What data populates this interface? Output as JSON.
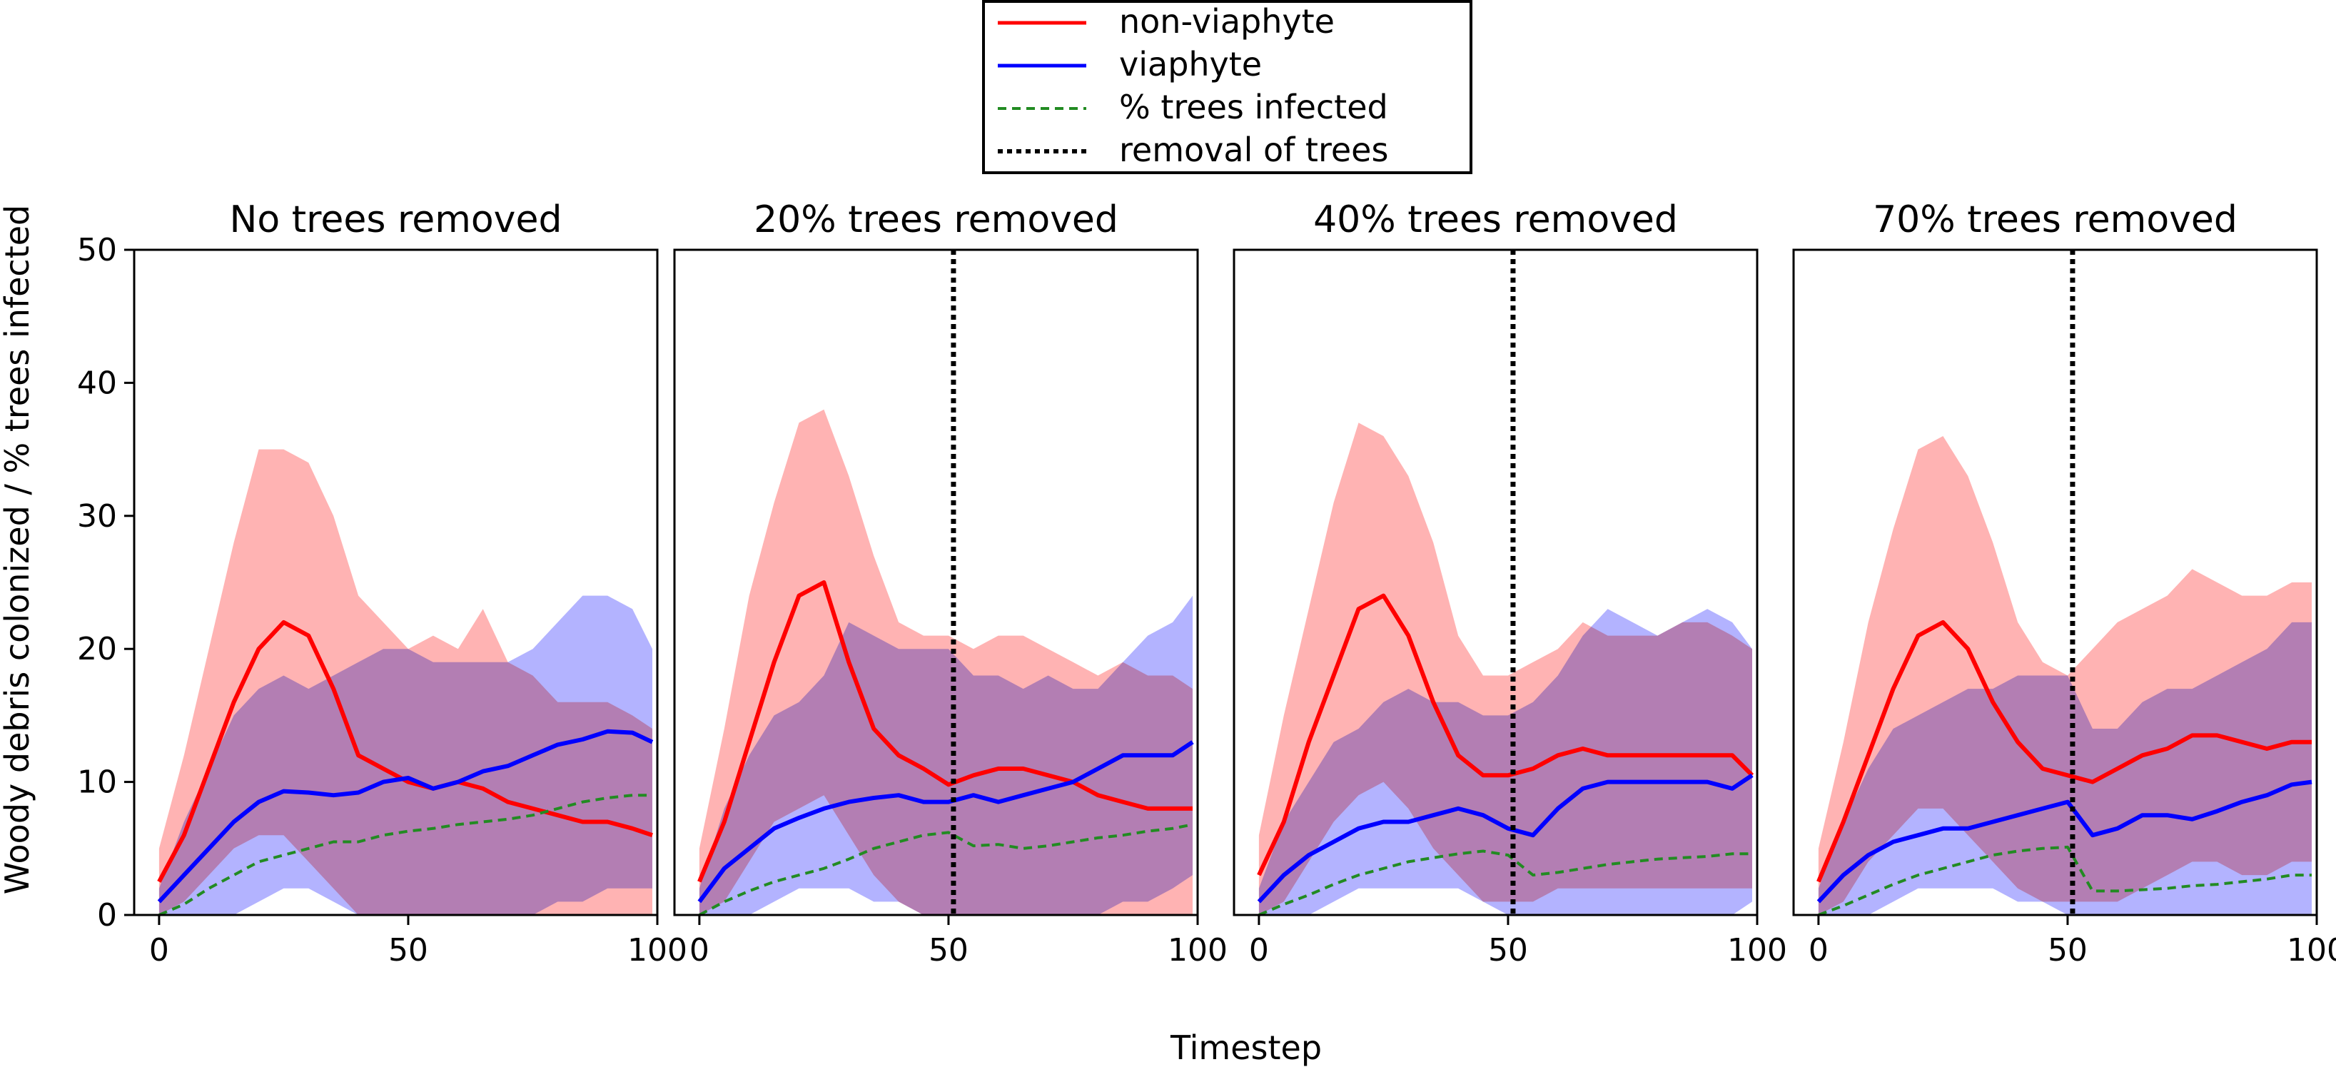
{
  "chart_data": {
    "type": "line",
    "ylabel": "Woody debris colonized / % trees infected",
    "xlabel": "Timestep",
    "ylim": [
      0,
      50
    ],
    "xlim": [
      -5,
      100
    ],
    "yticks": [
      0,
      10,
      20,
      30,
      40,
      50
    ],
    "xticks": [
      0,
      50,
      100
    ],
    "grid": false,
    "legend": {
      "placement": "top-center",
      "entries": [
        {
          "label": "non-viaphyte",
          "color": "#ff0000",
          "style": "solid"
        },
        {
          "label": "viaphyte",
          "color": "#0000ff",
          "style": "solid"
        },
        {
          "label": "% trees infected",
          "color": "#228b22",
          "style": "dashed"
        },
        {
          "label": "removal of trees",
          "color": "#000000",
          "style": "dotted"
        }
      ]
    },
    "colors": {
      "non_viaphyte": "#ff0000",
      "viaphyte": "#0000ff",
      "infected": "#228b22",
      "band_red": "#ff9999",
      "band_blue": "#9999ff"
    },
    "x": [
      0,
      5,
      10,
      15,
      20,
      25,
      30,
      35,
      40,
      45,
      50,
      55,
      60,
      65,
      70,
      75,
      80,
      85,
      90,
      95,
      99
    ],
    "panels": [
      {
        "title": "No trees removed",
        "removal_x": null,
        "series": [
          {
            "name": "non-viaphyte",
            "values": [
              2.5,
              6,
              11,
              16,
              20,
              22,
              21,
              17,
              12,
              11,
              10,
              9.5,
              10,
              9.5,
              8.5,
              8,
              7.5,
              7,
              7,
              6.5,
              6
            ],
            "lower": [
              0,
              1,
              3,
              5,
              6,
              6,
              4,
              2,
              0,
              0,
              0,
              0,
              0,
              0,
              0,
              0,
              0,
              0,
              0,
              0,
              0
            ],
            "upper": [
              5,
              12,
              20,
              28,
              35,
              35,
              34,
              30,
              24,
              22,
              20,
              21,
              20,
              23,
              19,
              18,
              16,
              16,
              16,
              15,
              14
            ]
          },
          {
            "name": "viaphyte",
            "values": [
              1,
              3,
              5,
              7,
              8.5,
              9.3,
              9.2,
              9,
              9.2,
              10,
              10.3,
              9.5,
              10,
              10.8,
              11.2,
              12,
              12.8,
              13.2,
              13.8,
              13.7,
              13
            ],
            "lower": [
              0,
              0,
              0,
              0,
              1,
              2,
              2,
              1,
              0,
              0,
              0,
              0,
              0,
              0,
              0,
              0,
              1,
              1,
              2,
              2,
              2
            ],
            "upper": [
              2,
              7,
              11,
              15,
              17,
              18,
              17,
              18,
              19,
              20,
              20,
              19,
              19,
              19,
              19,
              20,
              22,
              24,
              24,
              23,
              20
            ]
          },
          {
            "name": "% trees infected",
            "values": [
              0,
              0.8,
              2,
              3,
              4,
              4.5,
              5,
              5.5,
              5.5,
              6,
              6.3,
              6.5,
              6.8,
              7,
              7.2,
              7.5,
              8,
              8.5,
              8.8,
              9,
              9
            ]
          }
        ]
      },
      {
        "title": "20% trees removed",
        "removal_x": 51,
        "series": [
          {
            "name": "non-viaphyte",
            "values": [
              2.5,
              7,
              13,
              19,
              24,
              25,
              19,
              14,
              12,
              11,
              9.8,
              10.5,
              11,
              11,
              10.5,
              10,
              9,
              8.5,
              8,
              8,
              8
            ],
            "lower": [
              0,
              1,
              4,
              7,
              8,
              9,
              6,
              3,
              1,
              0,
              0,
              0,
              0,
              0,
              0,
              0,
              0,
              0,
              0,
              0,
              0
            ],
            "upper": [
              5,
              14,
              24,
              31,
              37,
              38,
              33,
              27,
              22,
              21,
              21,
              20,
              21,
              21,
              20,
              19,
              18,
              19,
              18,
              18,
              17
            ]
          },
          {
            "name": "viaphyte",
            "values": [
              1,
              3.5,
              5,
              6.5,
              7.3,
              8,
              8.5,
              8.8,
              9,
              8.5,
              8.5,
              9,
              8.5,
              9,
              9.5,
              10,
              11,
              12,
              12,
              12,
              13
            ],
            "lower": [
              0,
              0,
              0,
              1,
              2,
              2,
              2,
              1,
              1,
              0,
              0,
              0,
              0,
              0,
              0,
              0,
              0,
              1,
              1,
              2,
              3
            ],
            "upper": [
              2,
              8,
              12,
              15,
              16,
              18,
              22,
              21,
              20,
              20,
              20,
              18,
              18,
              17,
              18,
              17,
              17,
              19,
              21,
              22,
              24
            ]
          },
          {
            "name": "% trees infected",
            "values": [
              0,
              1,
              1.8,
              2.5,
              3,
              3.5,
              4.2,
              5,
              5.5,
              6,
              6.2,
              5.2,
              5.3,
              5,
              5.2,
              5.5,
              5.8,
              6,
              6.3,
              6.5,
              6.8
            ]
          }
        ]
      },
      {
        "title": "40% trees removed",
        "removal_x": 51,
        "series": [
          {
            "name": "non-viaphyte",
            "values": [
              3,
              7,
              13,
              18,
              23,
              24,
              21,
              16,
              12,
              10.5,
              10.5,
              11,
              12,
              12.5,
              12,
              12,
              12,
              12,
              12,
              12,
              10.5
            ],
            "lower": [
              0,
              1,
              4,
              7,
              9,
              10,
              8,
              5,
              3,
              1,
              1,
              1,
              2,
              2,
              2,
              2,
              2,
              2,
              2,
              2,
              2
            ],
            "upper": [
              6,
              15,
              23,
              31,
              37,
              36,
              33,
              28,
              21,
              18,
              18,
              19,
              20,
              22,
              21,
              21,
              21,
              22,
              22,
              21,
              20
            ]
          },
          {
            "name": "viaphyte",
            "values": [
              1,
              3,
              4.5,
              5.5,
              6.5,
              7,
              7,
              7.5,
              8,
              7.5,
              6.5,
              6,
              8,
              9.5,
              10,
              10,
              10,
              10,
              10,
              9.5,
              10.5
            ],
            "lower": [
              0,
              0,
              0,
              1,
              2,
              2,
              2,
              2,
              2,
              1,
              0,
              0,
              0,
              0,
              0,
              0,
              0,
              0,
              0,
              0,
              1
            ],
            "upper": [
              2,
              7,
              10,
              13,
              14,
              16,
              17,
              16,
              16,
              15,
              15,
              16,
              18,
              21,
              23,
              22,
              21,
              22,
              23,
              22,
              20
            ]
          },
          {
            "name": "% trees infected",
            "values": [
              0,
              0.8,
              1.5,
              2.3,
              3,
              3.5,
              4,
              4.3,
              4.6,
              4.8,
              4.5,
              3,
              3.2,
              3.5,
              3.8,
              4,
              4.2,
              4.3,
              4.4,
              4.6,
              4.6
            ]
          }
        ]
      },
      {
        "title": "70% trees removed",
        "removal_x": 51,
        "series": [
          {
            "name": "non-viaphyte",
            "values": [
              2.5,
              7,
              12,
              17,
              21,
              22,
              20,
              16,
              13,
              11,
              10.5,
              10,
              11,
              12,
              12.5,
              13.5,
              13.5,
              13,
              12.5,
              13,
              13
            ],
            "lower": [
              0,
              1,
              4,
              6,
              8,
              8,
              6,
              4,
              2,
              1,
              1,
              1,
              1,
              2,
              3,
              4,
              4,
              3,
              3,
              4,
              4
            ],
            "upper": [
              5,
              13,
              22,
              29,
              35,
              36,
              33,
              28,
              22,
              19,
              18,
              20,
              22,
              23,
              24,
              26,
              25,
              24,
              24,
              25,
              25
            ]
          },
          {
            "name": "viaphyte",
            "values": [
              1,
              3,
              4.5,
              5.5,
              6,
              6.5,
              6.5,
              7,
              7.5,
              8,
              8.5,
              6,
              6.5,
              7.5,
              7.5,
              7.2,
              7.8,
              8.5,
              9,
              9.8,
              10
            ],
            "lower": [
              0,
              0,
              0,
              1,
              2,
              2,
              2,
              2,
              1,
              1,
              0,
              0,
              0,
              0,
              0,
              0,
              0,
              0,
              0,
              0,
              0
            ],
            "upper": [
              2,
              7,
              11,
              14,
              15,
              16,
              17,
              17,
              18,
              18,
              18,
              14,
              14,
              16,
              17,
              17,
              18,
              19,
              20,
              22,
              22
            ]
          },
          {
            "name": "% trees infected",
            "values": [
              0,
              0.7,
              1.5,
              2.3,
              3,
              3.5,
              4,
              4.5,
              4.8,
              5,
              5.1,
              1.8,
              1.8,
              1.9,
              2,
              2.2,
              2.3,
              2.5,
              2.7,
              3,
              3
            ]
          }
        ]
      }
    ]
  }
}
